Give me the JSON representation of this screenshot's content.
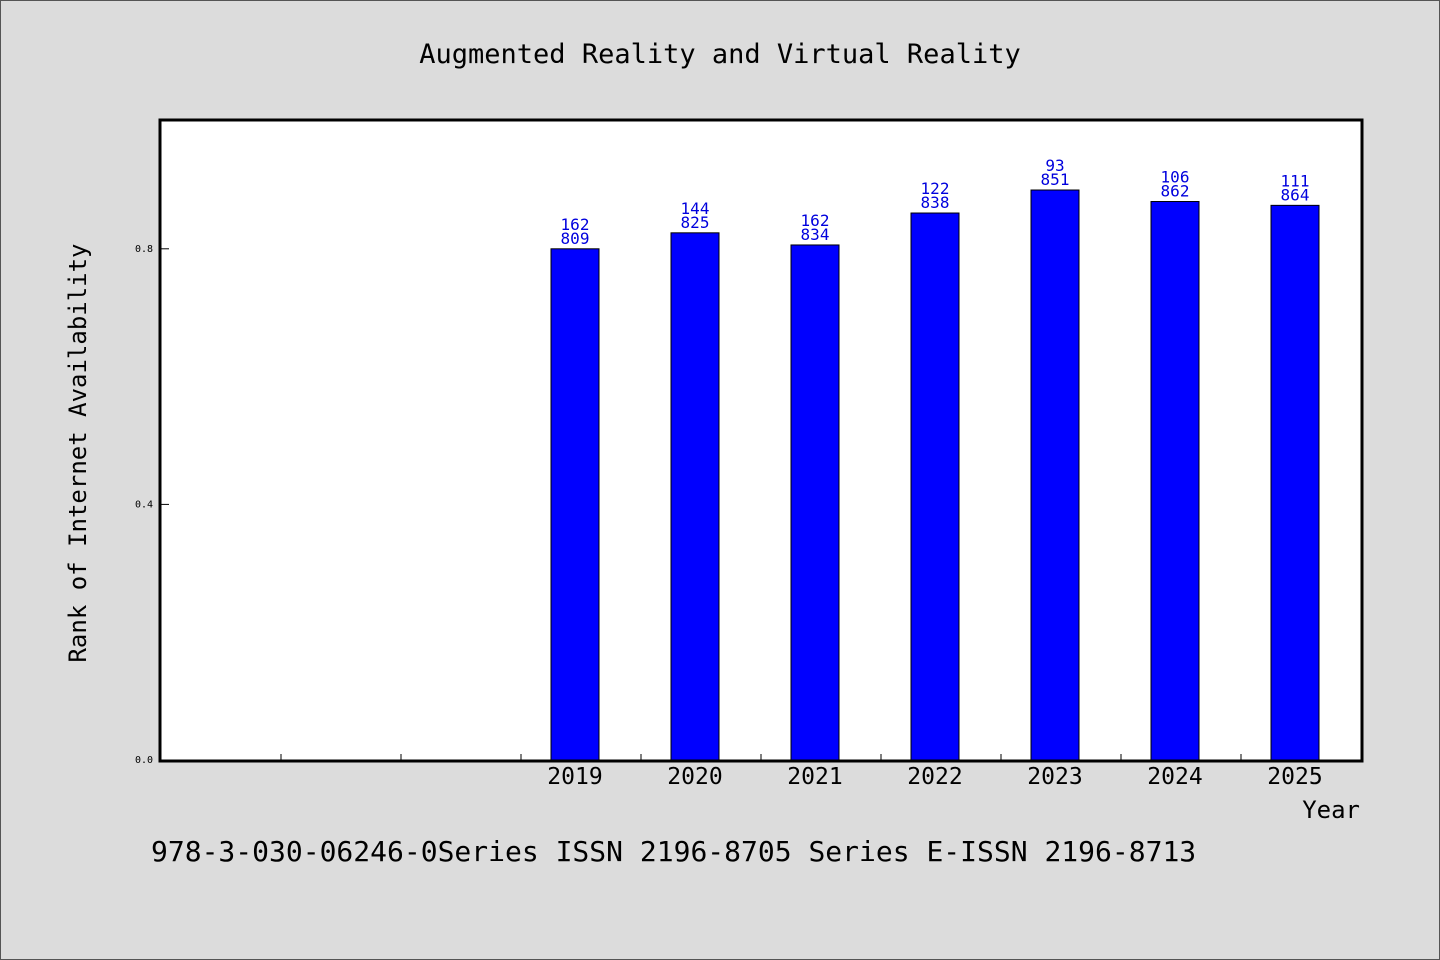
{
  "chart_data": {
    "type": "bar",
    "title": "Augmented Reality and Virtual Reality",
    "xlabel": "Year",
    "ylabel": "Rank of Internet Availability",
    "categories": [
      "",
      "",
      "",
      "2019",
      "2020",
      "2021",
      "2022",
      "2023",
      "2024",
      "2025"
    ],
    "values": [
      null,
      null,
      null,
      0.8,
      0.825,
      0.806,
      0.856,
      0.892,
      0.874,
      0.868
    ],
    "labels_top": [
      "",
      "",
      "",
      "162",
      "144",
      "162",
      "122",
      "93",
      "106",
      "111"
    ],
    "labels_bottom": [
      "",
      "",
      "",
      "809",
      "825",
      "834",
      "838",
      "851",
      "862",
      "864"
    ],
    "yticks": [
      0.0,
      0.4,
      0.8
    ],
    "ytick_labels": [
      "0.0",
      "0.4",
      "0.8"
    ],
    "ylim": [
      0,
      1.0
    ],
    "bar_color": "#0000ff",
    "label_color": "#0000dd",
    "grid": false,
    "legend": "none"
  },
  "footer": {
    "text": "978-3-030-06246-0Series ISSN 2196-8705 Series E-ISSN 2196-8713"
  }
}
